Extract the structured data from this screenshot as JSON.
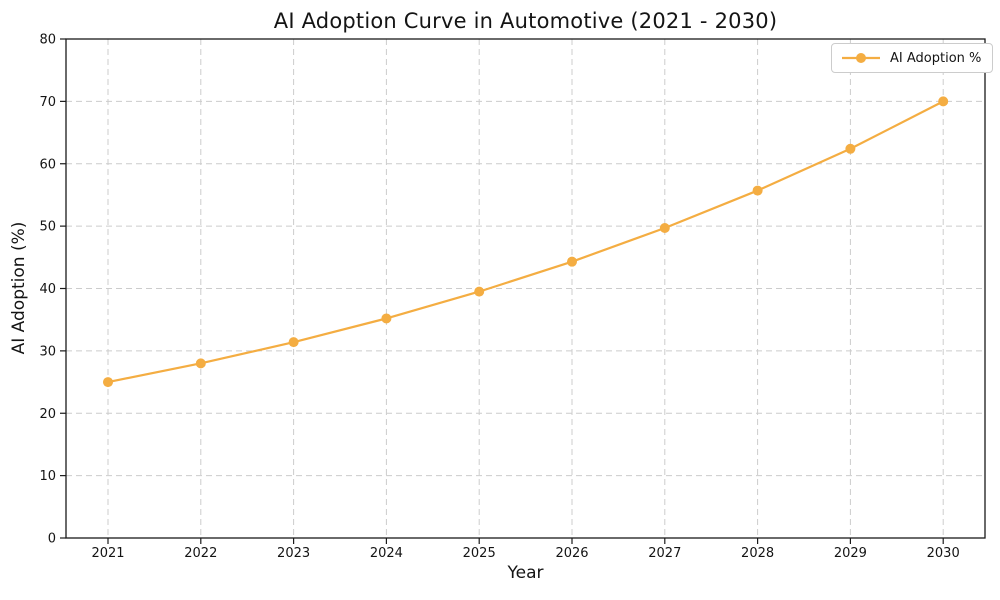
{
  "figure": {
    "title": "AI Adoption Curve in Automotive (2021 - 2030)",
    "xlabel": "Year",
    "ylabel": "AI Adoption (%)",
    "legend_label": "AI Adoption %"
  },
  "colors": {
    "series": "#F4AD42",
    "grid": "#CCCCCC",
    "spine": "#1A1A1A",
    "text": "#141414"
  },
  "chart_data": {
    "type": "line",
    "title": "AI Adoption Curve in Automotive (2021 - 2030)",
    "xlabel": "Year",
    "ylabel": "AI Adoption (%)",
    "categories": [
      "2021",
      "2022",
      "2023",
      "2024",
      "2025",
      "2026",
      "2027",
      "2028",
      "2029",
      "2030"
    ],
    "series": [
      {
        "name": "AI Adoption %",
        "values": [
          25.0,
          28.0,
          31.4,
          35.2,
          39.5,
          44.3,
          49.7,
          55.7,
          62.4,
          70.0
        ],
        "color": "#F4AD42",
        "marker": "o"
      }
    ],
    "ylim": [
      0,
      80
    ],
    "yticks": [
      0,
      10,
      20,
      30,
      40,
      50,
      60,
      70,
      80
    ],
    "grid": true,
    "grid_style": "dashed",
    "legend_position": "upper right"
  }
}
